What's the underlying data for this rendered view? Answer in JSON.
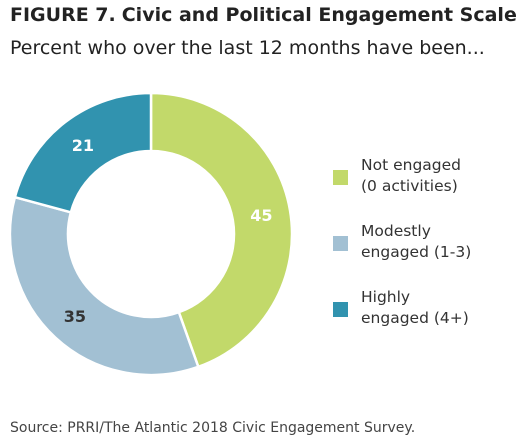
{
  "header": {
    "figure_number": "FIGURE 7.",
    "title": "Civic and Political Engagement Scale",
    "subtitle": "Percent who over the last 12 months have been..."
  },
  "chart_data": {
    "type": "pie",
    "title": "Civic and Political Engagement Scale",
    "subtitle": "Percent who over the last 12 months have been...",
    "legend_position": "right",
    "series": [
      {
        "name": "Not engaged (0 activities)",
        "value": 45,
        "color": "#c2d96a"
      },
      {
        "name": "Modestly engaged (1-3)",
        "value": 35,
        "color": "#a2c0d3"
      },
      {
        "name": "Highly engaged (4+)",
        "value": 21,
        "color": "#3193af"
      }
    ]
  },
  "legend": {
    "items": [
      {
        "line1": "Not engaged",
        "line2": "(0 activities)",
        "color": "#c2d96a"
      },
      {
        "line1": "Modestly",
        "line2": "engaged (1-3)",
        "color": "#a2c0d3"
      },
      {
        "line1": "Highly",
        "line2": "engaged (4+)",
        "color": "#3193af"
      }
    ]
  },
  "footer": {
    "source": "Source: PRRI/The Atlantic 2018 Civic Engagement Survey."
  }
}
